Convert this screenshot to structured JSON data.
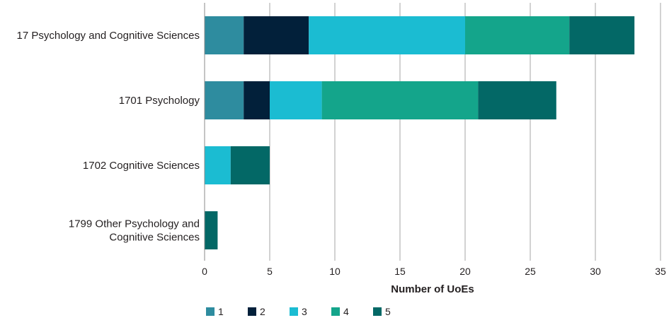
{
  "chart_data": {
    "type": "bar",
    "orientation": "horizontal",
    "stacked": true,
    "title": "",
    "xlabel": "Number of UoEs",
    "ylabel": "",
    "xlim": [
      0,
      35
    ],
    "xticks": [
      0,
      5,
      10,
      15,
      20,
      25,
      30,
      35
    ],
    "grid": true,
    "legend_position": "bottom-left",
    "categories": [
      [
        "17 Psychology and Cognitive Sciences"
      ],
      [
        "1701 Psychology"
      ],
      [
        "1702 Cognitive Sciences"
      ],
      [
        "1799 Other Psychology and",
        "Cognitive Sciences"
      ]
    ],
    "series": [
      {
        "name": "1",
        "color": "#2e8c9f",
        "values": [
          3,
          3,
          0,
          0
        ]
      },
      {
        "name": "2",
        "color": "#02203a",
        "values": [
          5,
          2,
          0,
          0
        ]
      },
      {
        "name": "3",
        "color": "#1bbcd2",
        "values": [
          12,
          4,
          2,
          0
        ]
      },
      {
        "name": "4",
        "color": "#14a58b",
        "values": [
          8,
          12,
          0,
          0
        ]
      },
      {
        "name": "5",
        "color": "#036866",
        "values": [
          5,
          6,
          3,
          1
        ]
      }
    ]
  }
}
